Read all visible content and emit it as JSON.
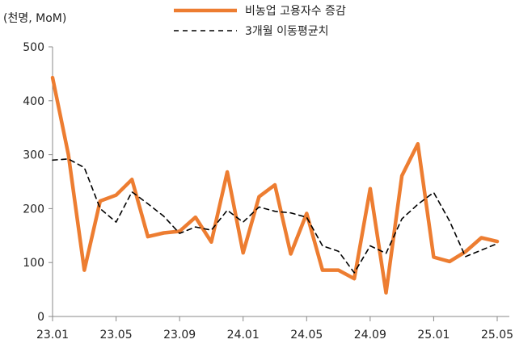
{
  "chart_data": {
    "type": "line",
    "title": "",
    "unit_label": "(천명, MoM)",
    "xlabel": "",
    "ylabel": "",
    "ylim": [
      0,
      500
    ],
    "yticks": [
      0,
      100,
      200,
      300,
      400,
      500
    ],
    "grid": false,
    "legend_position": "top-center",
    "x": [
      "23.01",
      "23.02",
      "23.03",
      "23.04",
      "23.05",
      "23.06",
      "23.07",
      "23.08",
      "23.09",
      "23.10",
      "23.11",
      "23.12",
      "24.01",
      "24.02",
      "24.03",
      "24.04",
      "24.05",
      "24.06",
      "24.07",
      "24.08",
      "24.09",
      "24.10",
      "24.11",
      "24.12",
      "25.01",
      "25.02",
      "25.03",
      "25.04",
      "25.05"
    ],
    "xtick_labels": [
      "23.01",
      "23.05",
      "23.09",
      "24.01",
      "24.05",
      "24.09",
      "25.01",
      "25.05"
    ],
    "series": [
      {
        "name": "비농업 고용자수 증감",
        "style": "solid",
        "color": "#ED7D31",
        "values": [
          443,
          300,
          86,
          214,
          225,
          254,
          148,
          155,
          158,
          184,
          138,
          268,
          118,
          222,
          244,
          116,
          191,
          86,
          86,
          70,
          237,
          44,
          261,
          320,
          110,
          102,
          120,
          146,
          139
        ]
      },
      {
        "name": "3개월 이동평균치",
        "style": "dashed",
        "color": "#000000",
        "values": [
          290,
          292,
          276,
          200,
          175,
          231,
          209,
          186,
          154,
          166,
          160,
          197,
          175,
          203,
          195,
          192,
          184,
          131,
          121,
          81,
          131,
          117,
          181,
          208,
          230,
          177,
          111,
          123,
          135
        ]
      }
    ]
  }
}
